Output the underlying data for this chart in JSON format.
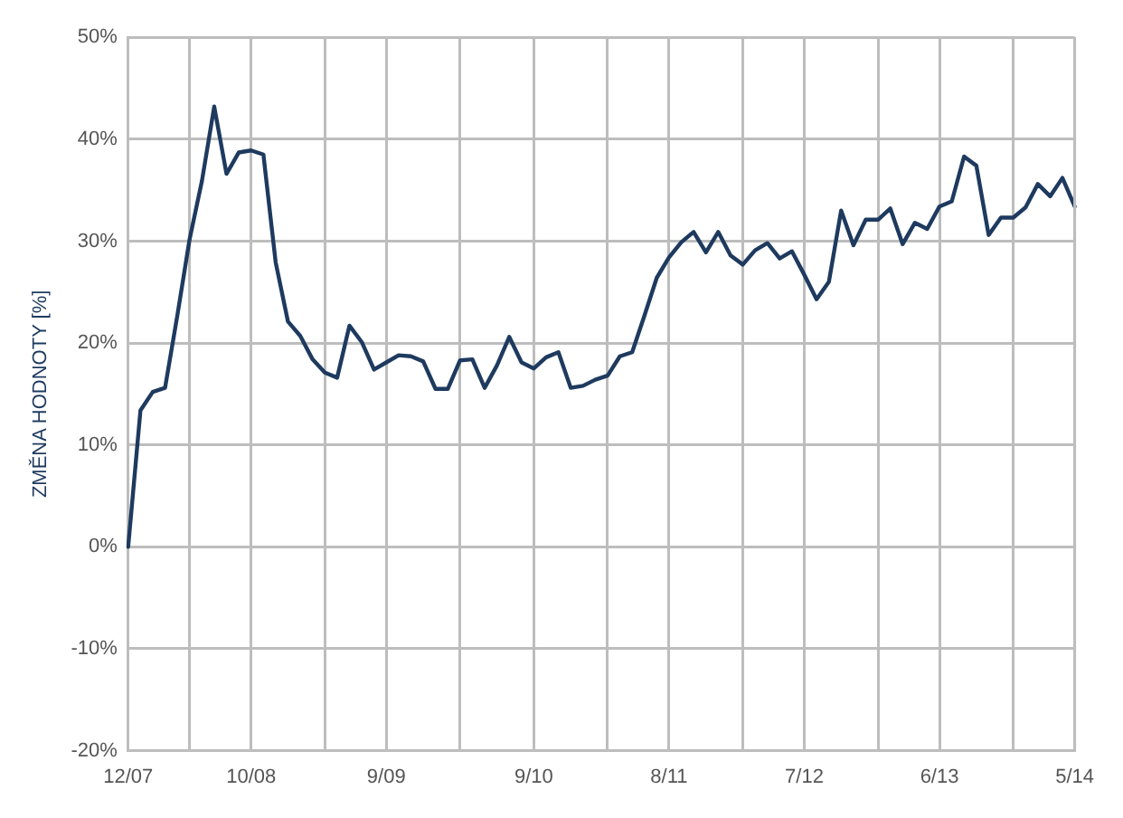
{
  "chart_data": {
    "type": "line",
    "ylabel": "ZMĚNA HODNOTY [%]",
    "categories": [
      "12/07",
      null,
      null,
      null,
      null,
      null,
      null,
      null,
      null,
      null,
      "10/08",
      null,
      null,
      null,
      null,
      null,
      null,
      null,
      null,
      null,
      null,
      "9/09",
      null,
      null,
      null,
      null,
      null,
      null,
      null,
      null,
      null,
      null,
      null,
      "9/10",
      null,
      null,
      null,
      null,
      null,
      null,
      null,
      null,
      null,
      null,
      "8/11",
      null,
      null,
      null,
      null,
      null,
      null,
      null,
      null,
      null,
      null,
      "7/12",
      null,
      null,
      null,
      null,
      null,
      null,
      null,
      null,
      null,
      null,
      "6/13",
      null,
      null,
      null,
      null,
      null,
      null,
      null,
      null,
      null,
      null,
      "5/14"
    ],
    "series": [
      {
        "color": "#1e3a5f",
        "values": [
          0,
          13.4,
          15.2,
          15.6,
          22.7,
          30.2,
          35.9,
          43.2,
          36.6,
          38.7,
          38.9,
          38.5,
          27.9,
          22.1,
          20.7,
          18.4,
          17.1,
          16.6,
          21.7,
          20.1,
          17.4,
          18.1,
          18.8,
          18.7,
          18.2,
          15.5,
          15.5,
          18.3,
          18.4,
          15.6,
          17.8,
          20.6,
          18.1,
          17.5,
          18.6,
          19.1,
          15.6,
          15.8,
          16.4,
          16.8,
          18.7,
          19.1,
          22.7,
          26.4,
          28.4,
          29.9,
          30.9,
          28.9,
          30.9,
          28.6,
          27.7,
          29.1,
          29.8,
          28.3,
          29.0,
          26.7,
          24.3,
          26.0,
          33.0,
          29.6,
          32.1,
          32.1,
          33.2,
          29.7,
          31.8,
          31.2,
          33.4,
          33.9,
          38.3,
          37.4,
          30.6,
          32.3,
          32.3,
          33.3,
          35.6,
          34.4,
          36.2,
          33.4
        ]
      }
    ],
    "ylim": [
      -20,
      50
    ],
    "yticks": [
      {
        "value": -20,
        "label": "-20%"
      },
      {
        "value": -10,
        "label": "-10%"
      },
      {
        "value": 0,
        "label": "0%"
      },
      {
        "value": 10,
        "label": "10%"
      },
      {
        "value": 20,
        "label": "20%"
      },
      {
        "value": 30,
        "label": "30%"
      },
      {
        "value": 40,
        "label": "40%"
      },
      {
        "value": 50,
        "label": "50%"
      }
    ],
    "grid": true,
    "legend": false,
    "marker": "none",
    "line_style": "solid"
  }
}
